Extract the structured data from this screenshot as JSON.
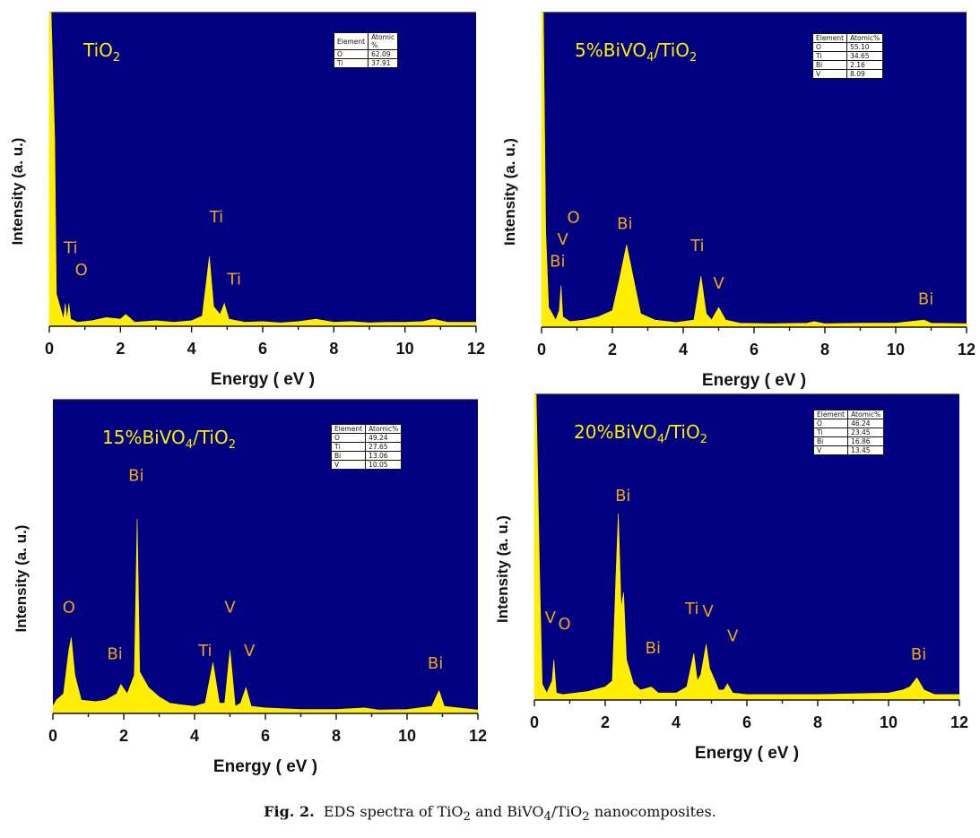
{
  "caption": {
    "prefix": "Fig. 2.",
    "text_parts": [
      "EDS spectra of TiO",
      "2",
      " and BiVO",
      "4",
      "/TiO",
      "2",
      " nanocomposites."
    ]
  },
  "colors": {
    "background": "#000080",
    "spectrum": "#ffee00",
    "peak_label": "#f0a818",
    "sample_label": "#ffee00"
  },
  "chart_data": [
    {
      "type": "area",
      "title": "TiO2",
      "title_parts": [
        "TiO",
        "2",
        "",
        "",
        ""
      ],
      "xlabel": "Energy ( eV )",
      "ylabel": "Intensity (a. u.)",
      "xlim": [
        0,
        12
      ],
      "x_ticks": [
        "0",
        "2",
        "4",
        "6",
        "8",
        "10",
        "12"
      ],
      "table": {
        "headers": [
          "Element",
          "Atomic %"
        ],
        "rows": [
          [
            "O",
            "62.09"
          ],
          [
            "Ti",
            "37.91"
          ]
        ]
      },
      "peak_labels": [
        {
          "text": "Ti",
          "x": 0.6,
          "y": 0.23
        },
        {
          "text": "O",
          "x": 0.9,
          "y": 0.16
        },
        {
          "text": "Ti",
          "x": 4.7,
          "y": 0.33
        },
        {
          "text": "Ti",
          "x": 5.2,
          "y": 0.13
        }
      ],
      "spectrum": [
        [
          0,
          1.0
        ],
        [
          0.05,
          1.0
        ],
        [
          0.15,
          0.6
        ],
        [
          0.2,
          0.1
        ],
        [
          0.3,
          0.06
        ],
        [
          0.4,
          0.02
        ],
        [
          0.45,
          0.07
        ],
        [
          0.5,
          0.02
        ],
        [
          0.55,
          0.07
        ],
        [
          0.6,
          0.02
        ],
        [
          0.8,
          0.01
        ],
        [
          1.2,
          0.015
        ],
        [
          1.6,
          0.025
        ],
        [
          2.0,
          0.02
        ],
        [
          2.15,
          0.035
        ],
        [
          2.4,
          0.01
        ],
        [
          3.0,
          0.015
        ],
        [
          3.5,
          0.01
        ],
        [
          4.0,
          0.015
        ],
        [
          4.3,
          0.03
        ],
        [
          4.5,
          0.22
        ],
        [
          4.62,
          0.06
        ],
        [
          4.8,
          0.035
        ],
        [
          4.92,
          0.07
        ],
        [
          5.05,
          0.02
        ],
        [
          5.5,
          0.01
        ],
        [
          6.0,
          0.012
        ],
        [
          6.5,
          0.008
        ],
        [
          7.0,
          0.012
        ],
        [
          7.5,
          0.02
        ],
        [
          8.0,
          0.01
        ],
        [
          8.5,
          0.012
        ],
        [
          9.0,
          0.008
        ],
        [
          9.5,
          0.01
        ],
        [
          10.0,
          0.01
        ],
        [
          10.5,
          0.012
        ],
        [
          10.8,
          0.02
        ],
        [
          11.2,
          0.01
        ],
        [
          12,
          0.01
        ]
      ]
    },
    {
      "type": "area",
      "title": "5%BiVO4/TiO2",
      "title_parts": [
        "5%BiVO",
        "4",
        "/TiO",
        "2",
        ""
      ],
      "xlabel": "Energy ( eV )",
      "ylabel": "Intensity (a. u.)",
      "xlim": [
        0,
        12
      ],
      "x_ticks": [
        "0",
        "2",
        "4",
        "6",
        "8",
        "10",
        "12"
      ],
      "table": {
        "headers": [
          "Element",
          "Atomic%"
        ],
        "rows": [
          [
            "O",
            "55.10"
          ],
          [
            "Ti",
            "34.65"
          ],
          [
            "Bi",
            "2.16"
          ],
          [
            "V",
            "8.09"
          ]
        ]
      },
      "peak_labels": [
        {
          "text": "O",
          "x": 0.9,
          "y": 0.33
        },
        {
          "text": "V",
          "x": 0.6,
          "y": 0.26
        },
        {
          "text": "Bi",
          "x": 0.45,
          "y": 0.19
        },
        {
          "text": "Bi",
          "x": 2.35,
          "y": 0.31
        },
        {
          "text": "Ti",
          "x": 4.4,
          "y": 0.24
        },
        {
          "text": "V",
          "x": 5.0,
          "y": 0.12
        },
        {
          "text": "Bi",
          "x": 10.85,
          "y": 0.07
        }
      ],
      "spectrum": [
        [
          0,
          1.0
        ],
        [
          0.05,
          1.0
        ],
        [
          0.12,
          0.3
        ],
        [
          0.2,
          0.06
        ],
        [
          0.3,
          0.04
        ],
        [
          0.4,
          0.02
        ],
        [
          0.5,
          0.05
        ],
        [
          0.55,
          0.13
        ],
        [
          0.6,
          0.03
        ],
        [
          0.8,
          0.015
        ],
        [
          1.2,
          0.02
        ],
        [
          1.6,
          0.03
        ],
        [
          2.0,
          0.05
        ],
        [
          2.2,
          0.15
        ],
        [
          2.4,
          0.26
        ],
        [
          2.6,
          0.15
        ],
        [
          2.8,
          0.04
        ],
        [
          3.2,
          0.02
        ],
        [
          3.8,
          0.012
        ],
        [
          4.3,
          0.02
        ],
        [
          4.5,
          0.16
        ],
        [
          4.65,
          0.04
        ],
        [
          4.8,
          0.02
        ],
        [
          5.0,
          0.06
        ],
        [
          5.2,
          0.02
        ],
        [
          5.6,
          0.01
        ],
        [
          6.5,
          0.008
        ],
        [
          7.5,
          0.01
        ],
        [
          7.7,
          0.015
        ],
        [
          8.0,
          0.008
        ],
        [
          9.0,
          0.01
        ],
        [
          10.0,
          0.01
        ],
        [
          10.8,
          0.02
        ],
        [
          11.0,
          0.01
        ],
        [
          12,
          0.008
        ]
      ]
    },
    {
      "type": "area",
      "title": "15%BiVO4/TiO2",
      "title_parts": [
        "15%BiVO",
        "4",
        "/TiO",
        "2",
        ""
      ],
      "xlabel": "Energy ( eV )",
      "ylabel": "Intensity (a. u.)",
      "xlim": [
        0,
        12
      ],
      "x_ticks": [
        "0",
        "2",
        "4",
        "6",
        "8",
        "10",
        "12"
      ],
      "table": {
        "headers": [
          "Element",
          "Atomic%"
        ],
        "rows": [
          [
            "O",
            "49.24"
          ],
          [
            "Ti",
            "27.65"
          ],
          [
            "Bi",
            "13.06"
          ],
          [
            "V",
            "10.05"
          ]
        ]
      },
      "peak_labels": [
        {
          "text": "O",
          "x": 0.45,
          "y": 0.32
        },
        {
          "text": "Bi",
          "x": 1.75,
          "y": 0.17
        },
        {
          "text": "Bi",
          "x": 2.35,
          "y": 0.74
        },
        {
          "text": "Ti",
          "x": 4.3,
          "y": 0.18
        },
        {
          "text": "V",
          "x": 5.0,
          "y": 0.32
        },
        {
          "text": "V",
          "x": 5.55,
          "y": 0.18
        },
        {
          "text": "Bi",
          "x": 10.8,
          "y": 0.14
        }
      ],
      "spectrum": [
        [
          0,
          0.02
        ],
        [
          0.1,
          0.04
        ],
        [
          0.3,
          0.06
        ],
        [
          0.45,
          0.2
        ],
        [
          0.52,
          0.24
        ],
        [
          0.62,
          0.12
        ],
        [
          0.8,
          0.04
        ],
        [
          1.2,
          0.035
        ],
        [
          1.5,
          0.04
        ],
        [
          1.8,
          0.06
        ],
        [
          1.92,
          0.09
        ],
        [
          2.1,
          0.06
        ],
        [
          2.3,
          0.12
        ],
        [
          2.38,
          0.62
        ],
        [
          2.45,
          0.13
        ],
        [
          2.7,
          0.08
        ],
        [
          3.0,
          0.05
        ],
        [
          3.3,
          0.03
        ],
        [
          3.6,
          0.025
        ],
        [
          4.0,
          0.02
        ],
        [
          4.3,
          0.03
        ],
        [
          4.52,
          0.16
        ],
        [
          4.7,
          0.03
        ],
        [
          4.85,
          0.03
        ],
        [
          5.0,
          0.2
        ],
        [
          5.15,
          0.02
        ],
        [
          5.3,
          0.03
        ],
        [
          5.45,
          0.08
        ],
        [
          5.6,
          0.02
        ],
        [
          6.0,
          0.015
        ],
        [
          7.0,
          0.01
        ],
        [
          8.0,
          0.01
        ],
        [
          8.8,
          0.015
        ],
        [
          9.2,
          0.008
        ],
        [
          10.0,
          0.01
        ],
        [
          10.7,
          0.02
        ],
        [
          10.9,
          0.07
        ],
        [
          11.05,
          0.02
        ],
        [
          12,
          0.008
        ]
      ]
    },
    {
      "type": "area",
      "title": "20%BiVO4/TiO2",
      "title_parts": [
        "20%BiVO",
        "4",
        "/TiO",
        "2",
        ""
      ],
      "xlabel": "Energy ( eV )",
      "ylabel": "Intensity (a. u.)",
      "xlim": [
        0,
        12
      ],
      "x_ticks": [
        "0",
        "2",
        "4",
        "6",
        "8",
        "10",
        "12"
      ],
      "table": {
        "headers": [
          "Element",
          "Atomic%"
        ],
        "rows": [
          [
            "O",
            "46.24"
          ],
          [
            "Ti",
            "23.45"
          ],
          [
            "Bi",
            "16.86"
          ],
          [
            "V",
            "13.45"
          ]
        ]
      },
      "peak_labels": [
        {
          "text": "V",
          "x": 0.45,
          "y": 0.25
        },
        {
          "text": "O",
          "x": 0.85,
          "y": 0.23
        },
        {
          "text": "Bi",
          "x": 2.5,
          "y": 0.65
        },
        {
          "text": "Bi",
          "x": 3.35,
          "y": 0.15
        },
        {
          "text": "Ti",
          "x": 4.45,
          "y": 0.28
        },
        {
          "text": "V",
          "x": 4.9,
          "y": 0.27
        },
        {
          "text": "V",
          "x": 5.6,
          "y": 0.19
        },
        {
          "text": "Bi",
          "x": 10.85,
          "y": 0.13
        }
      ],
      "spectrum": [
        [
          0,
          1.0
        ],
        [
          0.05,
          1.0
        ],
        [
          0.15,
          0.4
        ],
        [
          0.22,
          0.05
        ],
        [
          0.35,
          0.02
        ],
        [
          0.5,
          0.06
        ],
        [
          0.55,
          0.13
        ],
        [
          0.62,
          0.02
        ],
        [
          0.8,
          0.015
        ],
        [
          1.5,
          0.025
        ],
        [
          2.0,
          0.04
        ],
        [
          2.2,
          0.06
        ],
        [
          2.3,
          0.4
        ],
        [
          2.37,
          0.61
        ],
        [
          2.45,
          0.3
        ],
        [
          2.52,
          0.35
        ],
        [
          2.6,
          0.13
        ],
        [
          2.8,
          0.05
        ],
        [
          3.0,
          0.03
        ],
        [
          3.3,
          0.04
        ],
        [
          3.5,
          0.02
        ],
        [
          4.0,
          0.02
        ],
        [
          4.3,
          0.04
        ],
        [
          4.5,
          0.15
        ],
        [
          4.6,
          0.06
        ],
        [
          4.7,
          0.08
        ],
        [
          4.85,
          0.18
        ],
        [
          4.95,
          0.1
        ],
        [
          5.1,
          0.06
        ],
        [
          5.2,
          0.03
        ],
        [
          5.35,
          0.03
        ],
        [
          5.45,
          0.05
        ],
        [
          5.6,
          0.02
        ],
        [
          6.0,
          0.015
        ],
        [
          8.0,
          0.015
        ],
        [
          10.0,
          0.02
        ],
        [
          10.4,
          0.03
        ],
        [
          10.6,
          0.04
        ],
        [
          10.8,
          0.07
        ],
        [
          11.0,
          0.03
        ],
        [
          11.3,
          0.015
        ],
        [
          12,
          0.015
        ]
      ]
    }
  ]
}
